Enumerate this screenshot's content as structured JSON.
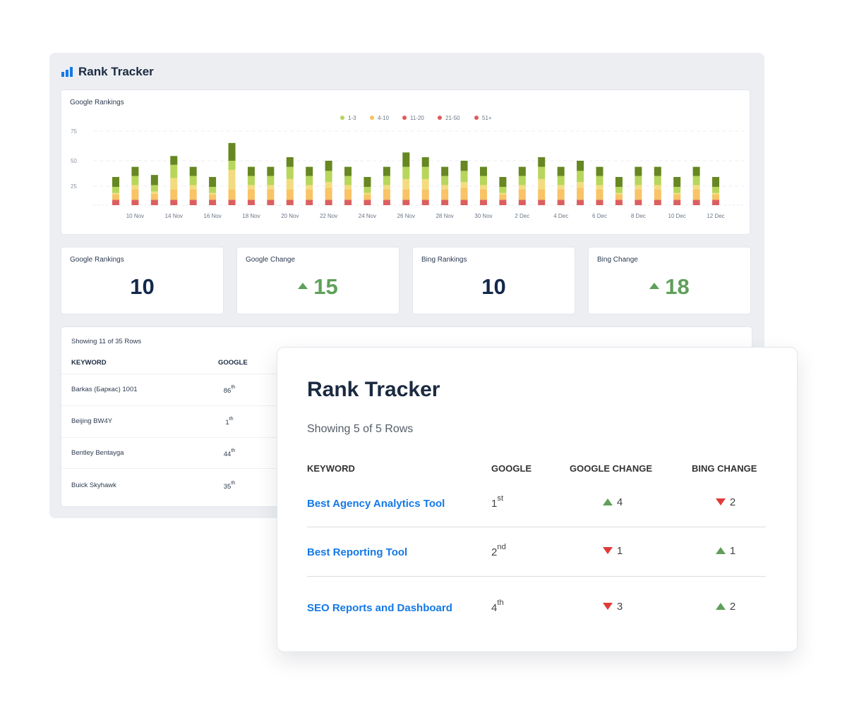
{
  "app": {
    "title": "Rank Tracker",
    "icon": "bar-chart-icon",
    "accent": "#1479e6"
  },
  "chart_data": {
    "type": "bar",
    "stacked": true,
    "title": "Google Rankings",
    "legend": [
      {
        "label": "1-3",
        "color": "#b5d55b"
      },
      {
        "label": "4-10",
        "color": "#f7c15e"
      },
      {
        "label": "11-20",
        "color": "#e05a5a"
      },
      {
        "label": "21-50",
        "color": "#e05a5a"
      },
      {
        "label": "51+",
        "color": "#e05a5a"
      }
    ],
    "legend_placement": "top-center",
    "y_ticks": [
      25,
      50,
      75
    ],
    "grid": true,
    "x_tick_labels": [
      "10 Nov",
      "14 Nov",
      "16 Nov",
      "18 Nov",
      "20 Nov",
      "22 Nov",
      "24 Nov",
      "26 Nov",
      "28 Nov",
      "30 Nov",
      "2 Dec",
      "4 Dec",
      "6 Dec",
      "8 Dec",
      "10 Dec",
      "12 Dec"
    ],
    "segment_colors_bottom_to_top": [
      "#dc5f60",
      "#f8c465",
      "#f3dc80",
      "#b7d65b",
      "#668722"
    ],
    "bars": [
      [
        7,
        7,
        2,
        8,
        10
      ],
      [
        7,
        14,
        5,
        9,
        9
      ],
      [
        7,
        8,
        3,
        8,
        10
      ],
      [
        7,
        14,
        12,
        13,
        8
      ],
      [
        7,
        14,
        5,
        9,
        9
      ],
      [
        7,
        7,
        2,
        8,
        10
      ],
      [
        7,
        14,
        20,
        9,
        15
      ],
      [
        7,
        14,
        5,
        9,
        9
      ],
      [
        7,
        14,
        5,
        9,
        9
      ],
      [
        7,
        14,
        11,
        12,
        9
      ],
      [
        7,
        14,
        5,
        9,
        9
      ],
      [
        7,
        16,
        6,
        11,
        10
      ],
      [
        7,
        14,
        5,
        9,
        9
      ],
      [
        7,
        7,
        2,
        8,
        10
      ],
      [
        7,
        14,
        5,
        9,
        9
      ],
      [
        7,
        14,
        11,
        12,
        13
      ],
      [
        7,
        14,
        11,
        12,
        9
      ],
      [
        7,
        14,
        5,
        9,
        9
      ],
      [
        7,
        16,
        6,
        11,
        10
      ],
      [
        7,
        14,
        5,
        9,
        9
      ],
      [
        7,
        7,
        2,
        8,
        10
      ],
      [
        7,
        14,
        5,
        9,
        9
      ],
      [
        7,
        14,
        11,
        12,
        9
      ],
      [
        7,
        14,
        5,
        9,
        9
      ],
      [
        7,
        16,
        6,
        11,
        10
      ],
      [
        7,
        14,
        5,
        9,
        9
      ],
      [
        7,
        7,
        2,
        8,
        10
      ],
      [
        7,
        14,
        5,
        9,
        9
      ],
      [
        7,
        14,
        5,
        9,
        9
      ],
      [
        7,
        7,
        2,
        8,
        10
      ],
      [
        7,
        14,
        5,
        9,
        9
      ],
      [
        7,
        7,
        2,
        8,
        10
      ]
    ]
  },
  "stats": [
    {
      "label": "Google Rankings",
      "value": "10",
      "trend": "none"
    },
    {
      "label": "Google Change",
      "value": "15",
      "trend": "up"
    },
    {
      "label": "Bing Rankings",
      "value": "10",
      "trend": "none"
    },
    {
      "label": "Bing Change",
      "value": "18",
      "trend": "up"
    }
  ],
  "colors": {
    "up": "#5fa05a",
    "down": "#e03a3a"
  },
  "back_table": {
    "showing": "Showing 11 of 35 Rows",
    "headers": [
      "KEYWORD",
      "GOOGLE"
    ],
    "rows": [
      {
        "keyword": "Barkas (Баркас) 1001",
        "rank": "86",
        "suffix": "th"
      },
      {
        "keyword": "Beijing BW4Y",
        "rank": "1",
        "suffix": "th"
      },
      {
        "keyword": "Bentley Bentayga",
        "rank": "44",
        "suffix": "th"
      },
      {
        "keyword": "Buick Skyhawk",
        "rank": "35",
        "suffix": "th"
      }
    ]
  },
  "overlay": {
    "title": "Rank Tracker",
    "showing": "Showing 5 of 5 Rows",
    "headers": [
      "KEYWORD",
      "GOOGLE",
      "GOOGLE CHANGE",
      "BING CHANGE"
    ],
    "rows": [
      {
        "keyword": "Best Agency Analytics Tool",
        "rank": "1",
        "suffix": "st",
        "google_change": "4",
        "google_dir": "up",
        "bing_change": "2",
        "bing_dir": "down"
      },
      {
        "keyword": "Best Reporting Tool",
        "rank": "2",
        "suffix": "nd",
        "google_change": "1",
        "google_dir": "down",
        "bing_change": "1",
        "bing_dir": "up"
      },
      {
        "keyword": "SEO Reports and Dashboard",
        "rank": "4",
        "suffix": "th",
        "google_change": "3",
        "google_dir": "down",
        "bing_change": "2",
        "bing_dir": "up"
      }
    ]
  }
}
